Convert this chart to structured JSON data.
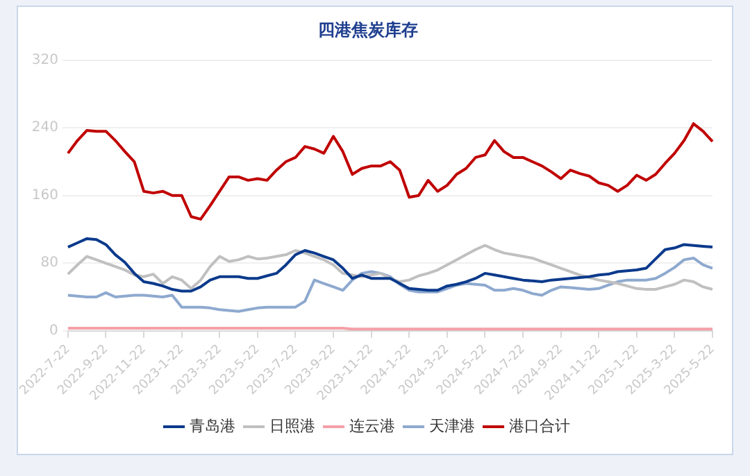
{
  "chart_data": {
    "type": "line",
    "title": "四港焦炭库存",
    "categories": [
      "2022-7-22",
      null,
      null,
      null,
      "2022-9-22",
      null,
      null,
      null,
      "2022-11-22",
      null,
      null,
      null,
      "2023-1-22",
      null,
      null,
      null,
      "2023-3-22",
      null,
      null,
      null,
      "2023-5-22",
      null,
      null,
      null,
      "2023-7-22",
      null,
      null,
      null,
      "2023-9-22",
      null,
      null,
      null,
      "2023-11-22",
      null,
      null,
      null,
      "2024-1-22",
      null,
      null,
      null,
      "2024-3-22",
      null,
      null,
      null,
      "2024-5-22",
      null,
      null,
      null,
      "2024-7-22",
      null,
      null,
      null,
      "2024-9-22",
      null,
      null,
      null,
      "2024-11-22",
      null,
      null,
      null,
      "2025-1-22",
      null,
      null,
      null,
      "2025-3-22",
      null,
      null,
      null,
      "2025-5-22"
    ],
    "series": [
      {
        "name": "青岛港",
        "color": "#0b3a8c",
        "values": [
          99,
          104,
          109,
          108,
          102,
          90,
          81,
          68,
          58,
          56,
          53,
          49,
          47,
          47,
          52,
          60,
          64,
          64,
          64,
          62,
          62,
          65,
          68,
          78,
          90,
          95,
          92,
          88,
          84,
          74,
          62,
          66,
          62,
          62,
          62,
          56,
          50,
          49,
          48,
          48,
          53,
          55,
          58,
          62,
          68,
          66,
          64,
          62,
          60,
          59,
          58,
          60,
          61,
          62,
          63,
          64,
          66,
          67,
          70,
          71,
          72,
          74,
          85,
          96,
          98,
          102,
          101,
          100,
          99
        ]
      },
      {
        "name": "日照港",
        "color": "#c0c0c0",
        "values": [
          67,
          78,
          88,
          84,
          80,
          76,
          72,
          66,
          64,
          67,
          56,
          64,
          60,
          50,
          60,
          76,
          88,
          82,
          84,
          88,
          85,
          86,
          88,
          90,
          95,
          92,
          88,
          84,
          78,
          68,
          66,
          64,
          66,
          68,
          62,
          58,
          60,
          65,
          68,
          72,
          78,
          84,
          90,
          96,
          101,
          96,
          92,
          90,
          88,
          86,
          82,
          78,
          74,
          70,
          66,
          63,
          60,
          58,
          56,
          53,
          50,
          49,
          49,
          52,
          55,
          60,
          58,
          52,
          49
        ]
      },
      {
        "name": "连云港",
        "color": "#f4a0a8",
        "values": [
          3,
          3,
          3,
          3,
          3,
          3,
          3,
          3,
          3,
          3,
          3,
          3,
          3,
          3,
          3,
          3,
          3,
          3,
          3,
          3,
          3,
          3,
          3,
          3,
          3,
          3,
          3,
          3,
          3,
          3,
          2,
          2,
          2,
          2,
          2,
          2,
          2,
          2,
          2,
          2,
          2,
          2,
          2,
          2,
          2,
          2,
          2,
          2,
          2,
          2,
          2,
          2,
          2,
          2,
          2,
          2,
          2,
          2,
          2,
          2,
          2,
          2,
          2,
          2,
          2,
          2,
          2,
          2,
          2
        ]
      },
      {
        "name": "天津港",
        "color": "#8ea9cf",
        "values": [
          42,
          41,
          40,
          40,
          45,
          40,
          41,
          42,
          42,
          41,
          40,
          42,
          28,
          28,
          28,
          27,
          25,
          24,
          23,
          25,
          27,
          28,
          28,
          28,
          28,
          35,
          60,
          56,
          52,
          48,
          60,
          68,
          70,
          68,
          64,
          55,
          48,
          46,
          46,
          46,
          50,
          54,
          56,
          55,
          54,
          48,
          48,
          50,
          48,
          44,
          42,
          48,
          52,
          51,
          50,
          49,
          50,
          54,
          58,
          60,
          60,
          60,
          62,
          68,
          75,
          84,
          86,
          78,
          74
        ]
      },
      {
        "name": "港口合计",
        "color": "#c00000",
        "values": [
          210,
          225,
          237,
          236,
          236,
          225,
          212,
          200,
          165,
          163,
          165,
          160,
          160,
          135,
          132,
          148,
          165,
          182,
          182,
          178,
          180,
          178,
          190,
          200,
          205,
          218,
          215,
          210,
          230,
          212,
          185,
          192,
          195,
          195,
          200,
          190,
          158,
          160,
          178,
          165,
          172,
          185,
          192,
          205,
          208,
          225,
          212,
          205,
          205,
          200,
          195,
          188,
          180,
          190,
          186,
          183,
          175,
          172,
          165,
          172,
          184,
          178,
          185,
          198,
          210,
          225,
          245,
          236,
          224
        ]
      }
    ],
    "ylim": [
      0,
      320
    ],
    "yticks": [
      0,
      80,
      160,
      240,
      320
    ],
    "grid": "y",
    "legend": "bottom",
    "marker": "none",
    "line_style": "solid"
  }
}
